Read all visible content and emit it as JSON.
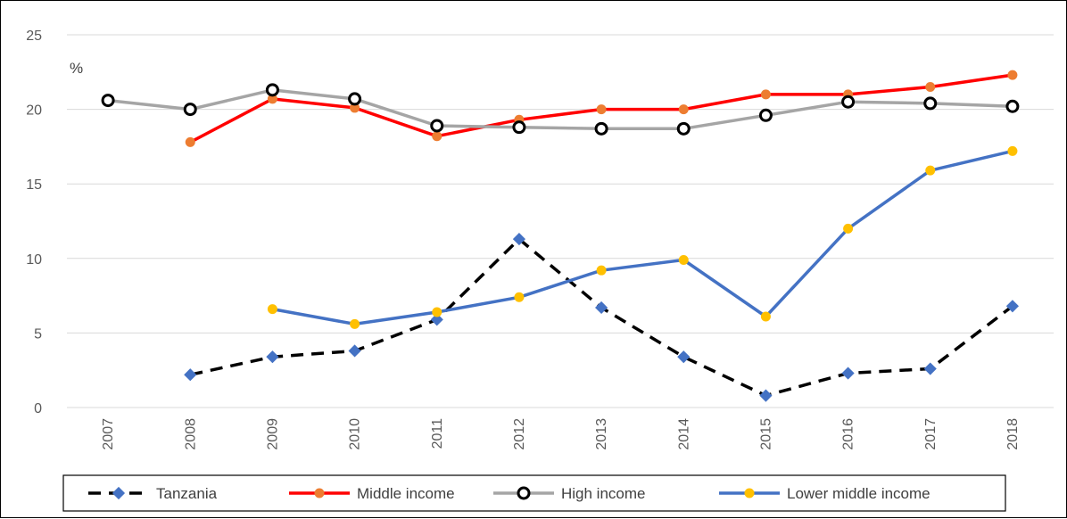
{
  "chart_data": {
    "type": "line",
    "title": "",
    "xlabel": "",
    "ylabel": "%",
    "ylim": [
      0,
      25
    ],
    "yticks": [
      0,
      5,
      10,
      15,
      20,
      25
    ],
    "grid": "horizontal",
    "legend_position": "bottom",
    "categories": [
      "2007",
      "2008",
      "2009",
      "2010",
      "2011",
      "2012",
      "2013",
      "2014",
      "2015",
      "2016",
      "2017",
      "2018"
    ],
    "series": [
      {
        "name": "Tanzania",
        "line_color": "#000000",
        "marker_color": "#4472C4",
        "dashed": true,
        "hollow_marker": false,
        "values": [
          null,
          2.2,
          3.4,
          3.8,
          5.9,
          11.3,
          6.7,
          3.4,
          0.8,
          2.3,
          2.6,
          6.8
        ]
      },
      {
        "name": "Middle income",
        "line_color": "#FF0000",
        "marker_color": "#ED7D31",
        "dashed": false,
        "hollow_marker": false,
        "values": [
          null,
          17.8,
          20.7,
          20.1,
          18.2,
          19.3,
          20.0,
          20.0,
          21.0,
          21.0,
          21.5,
          22.3
        ]
      },
      {
        "name": "High income",
        "line_color": "#A5A5A5",
        "marker_color": "#000000",
        "dashed": false,
        "hollow_marker": true,
        "values": [
          20.6,
          20.0,
          21.3,
          20.7,
          18.9,
          18.8,
          18.7,
          18.7,
          19.6,
          20.5,
          20.4,
          20.2
        ]
      },
      {
        "name": "Lower middle income",
        "line_color": "#4472C4",
        "marker_color": "#FFC000",
        "dashed": false,
        "hollow_marker": false,
        "values": [
          null,
          null,
          6.6,
          5.6,
          6.4,
          7.4,
          9.2,
          9.9,
          6.1,
          12.0,
          15.9,
          17.2
        ]
      }
    ]
  }
}
